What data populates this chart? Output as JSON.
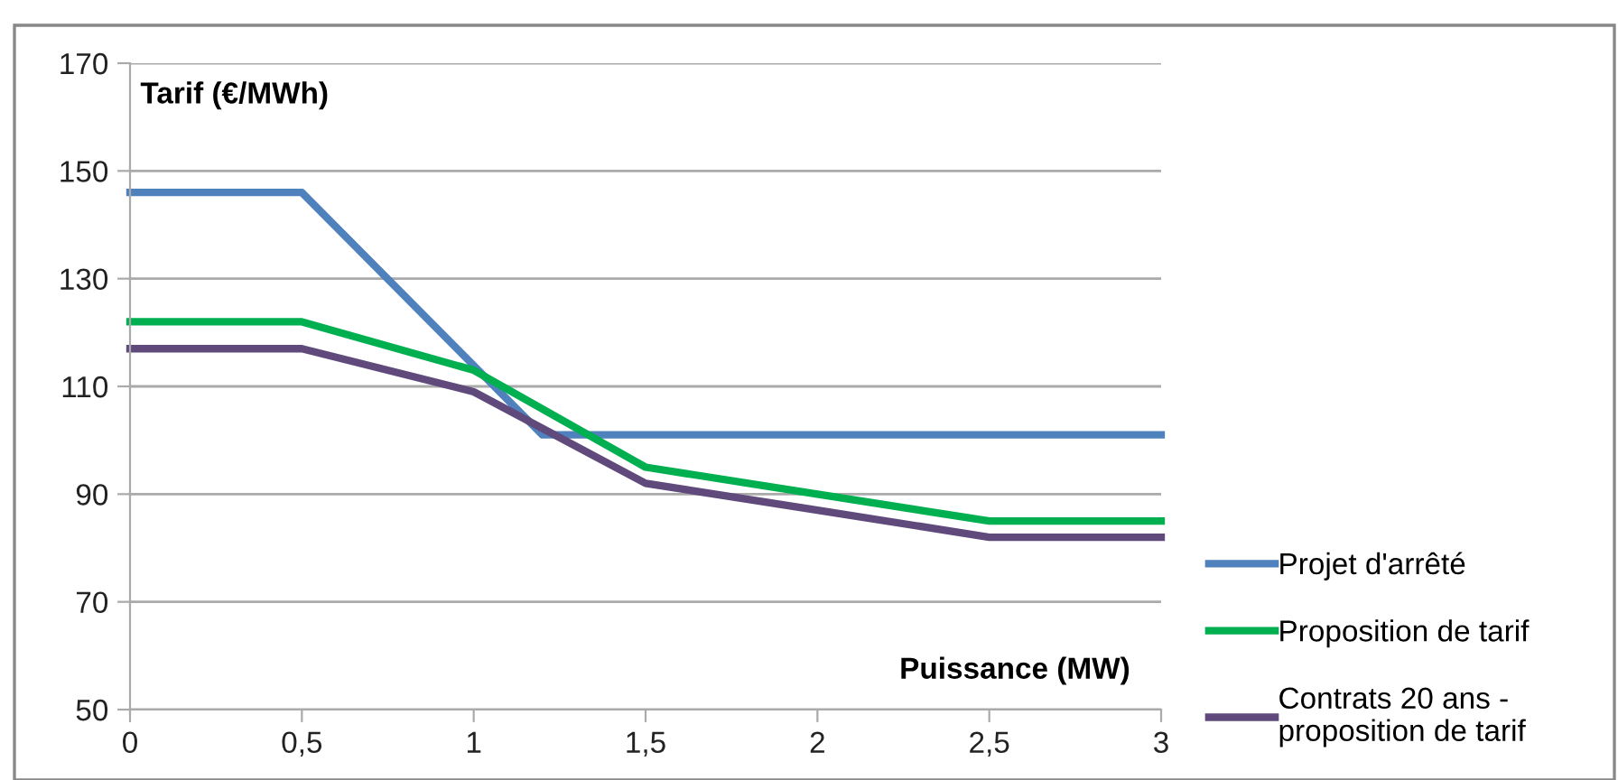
{
  "chart_data": {
    "type": "line",
    "xlabel": "Puissance (MW)",
    "ylabel": "Tarif (€/MWh)",
    "xlim": [
      0,
      3
    ],
    "xticks": [
      {
        "value": 0,
        "label": "0"
      },
      {
        "value": 0.5,
        "label": "0,5"
      },
      {
        "value": 1,
        "label": "1"
      },
      {
        "value": 1.5,
        "label": "1,5"
      },
      {
        "value": 2,
        "label": "2"
      },
      {
        "value": 2.5,
        "label": "2,5"
      },
      {
        "value": 3,
        "label": "3"
      }
    ],
    "ylim": [
      50,
      170
    ],
    "yticks": [
      50,
      70,
      90,
      110,
      130,
      150,
      170
    ],
    "grid": "y",
    "legend": "bottom right",
    "marker": "none",
    "line_style": "solid",
    "series": [
      {
        "name": "Projet d'arrêté",
        "color": "#4f81bd",
        "x": [
          0,
          0.5,
          1.2,
          3
        ],
        "values": [
          146,
          146,
          101,
          101
        ]
      },
      {
        "name": "Proposition de tarif",
        "color": "#00b050",
        "x": [
          0,
          0.5,
          1,
          1.5,
          2,
          2.5,
          3
        ],
        "values": [
          122,
          122,
          113,
          95,
          90,
          85,
          85
        ]
      },
      {
        "name": "Contrats 20 ans -\nproposition de tarif",
        "color": "#604a7b",
        "x": [
          0,
          0.5,
          1,
          1.5,
          2,
          2.5,
          3
        ],
        "values": [
          117,
          117,
          109,
          92,
          87,
          82,
          82
        ]
      }
    ]
  }
}
